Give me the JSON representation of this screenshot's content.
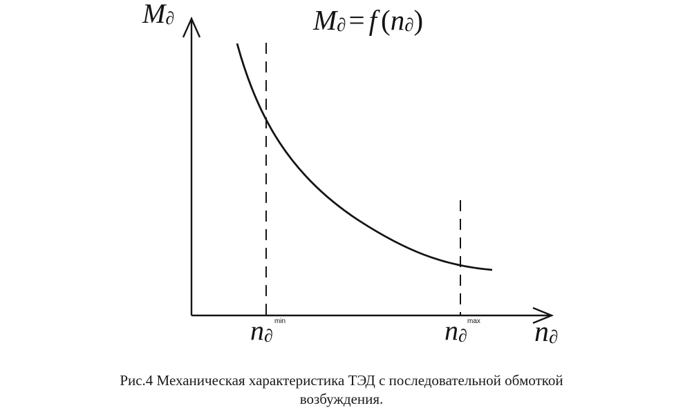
{
  "diagram": {
    "y_axis_label": {
      "main": "M",
      "sub": "∂"
    },
    "formula": {
      "lhs_main": "M",
      "lhs_sub": "∂",
      "eq": "=",
      "func": "f",
      "open": "(",
      "arg_main": "n",
      "arg_sub": "∂",
      "close": ")"
    },
    "x_axis_label": {
      "main": "n",
      "sub": "∂"
    },
    "marker_min": {
      "main": "n",
      "sub": "∂",
      "sup": "min"
    },
    "marker_max": {
      "main": "n",
      "sub": "∂",
      "sup": "max"
    },
    "curve_shape": "decreasing hyperbola-like",
    "line_color": "#141414"
  },
  "caption": {
    "line1": "Рис.4 Механическая характеристика ТЭД с последовательной обмоткой",
    "line2": "возбуждения."
  }
}
